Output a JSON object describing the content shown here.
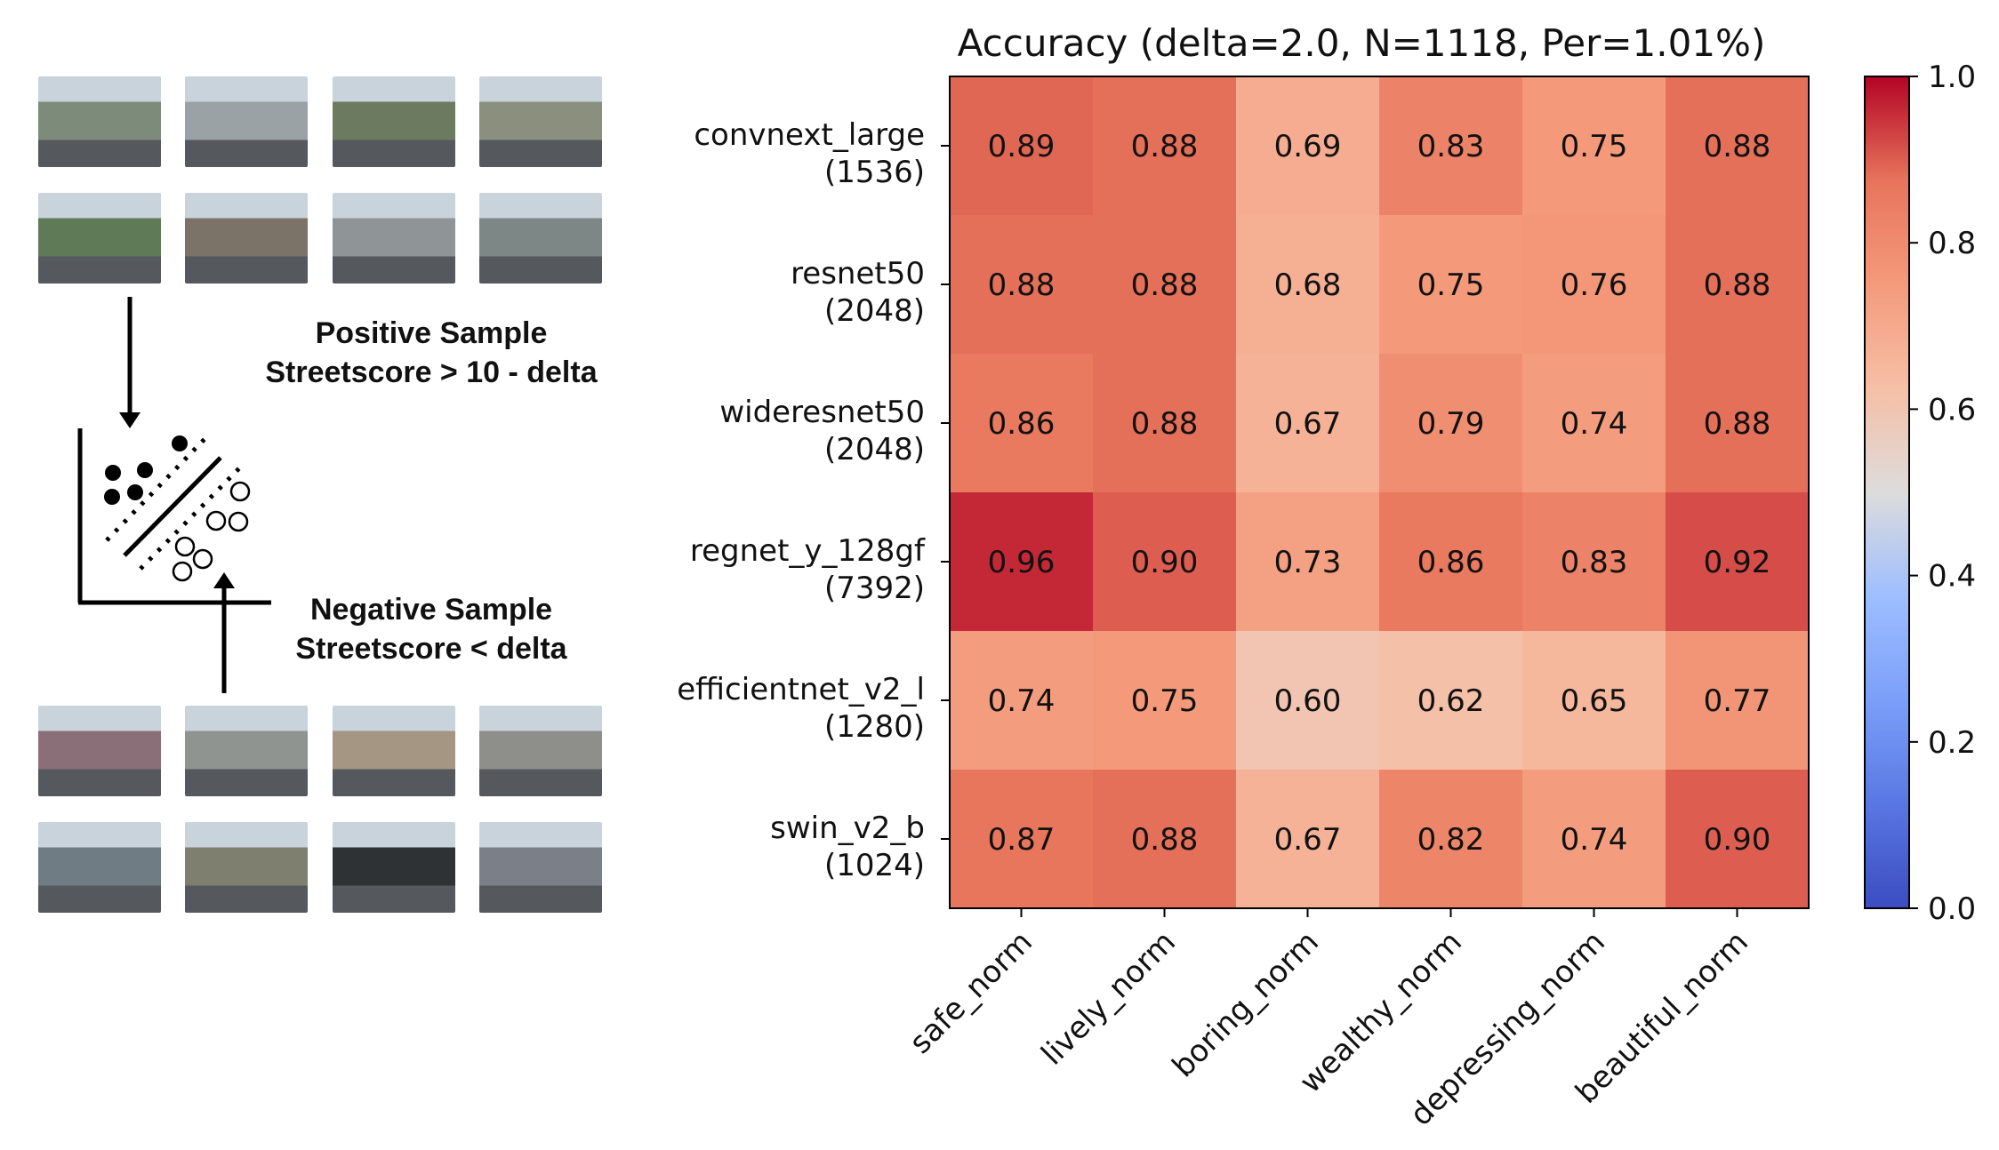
{
  "left_panel": {
    "positive_title": "Positive Sample",
    "positive_rule": "Streetscore > 10 - delta",
    "negative_title": "Negative Sample",
    "negative_rule": "Streetscore < delta",
    "positive_thumb_colors": [
      "#7d8c7a",
      "#9aa2a6",
      "#6c7a5f",
      "#8a8f7e",
      "#5f7a56",
      "#7b7368",
      "#8f9596",
      "#7d8785"
    ],
    "negative_thumb_colors": [
      "#8b6f78",
      "#8f9490",
      "#a49682",
      "#8e8f8a",
      "#6f7c84",
      "#7f7f70",
      "#2f3235",
      "#7b8088"
    ]
  },
  "chart_data": {
    "type": "heatmap",
    "title": "Accuracy (delta=2.0, N=1118, Per=1.01%)",
    "rows": [
      {
        "name": "convnext_large",
        "dim": "(1536)"
      },
      {
        "name": "resnet50",
        "dim": "(2048)"
      },
      {
        "name": "wideresnet50",
        "dim": "(2048)"
      },
      {
        "name": "regnet_y_128gf",
        "dim": "(7392)"
      },
      {
        "name": "efficientnet_v2_l",
        "dim": "(1280)"
      },
      {
        "name": "swin_v2_b",
        "dim": "(1024)"
      }
    ],
    "columns": [
      "safe_norm",
      "lively_norm",
      "boring_norm",
      "wealthy_norm",
      "depressing_norm",
      "beautiful_norm"
    ],
    "values": [
      [
        0.89,
        0.88,
        0.69,
        0.83,
        0.75,
        0.88
      ],
      [
        0.88,
        0.88,
        0.68,
        0.75,
        0.76,
        0.88
      ],
      [
        0.86,
        0.88,
        0.67,
        0.79,
        0.74,
        0.88
      ],
      [
        0.96,
        0.9,
        0.73,
        0.86,
        0.83,
        0.92
      ],
      [
        0.74,
        0.75,
        0.6,
        0.62,
        0.65,
        0.77
      ],
      [
        0.87,
        0.88,
        0.67,
        0.82,
        0.74,
        0.9
      ]
    ],
    "value_labels": [
      [
        "0.89",
        "0.88",
        "0.69",
        "0.83",
        "0.75",
        "0.88"
      ],
      [
        "0.88",
        "0.88",
        "0.68",
        "0.75",
        "0.76",
        "0.88"
      ],
      [
        "0.86",
        "0.88",
        "0.67",
        "0.79",
        "0.74",
        "0.88"
      ],
      [
        "0.96",
        "0.90",
        "0.73",
        "0.86",
        "0.83",
        "0.92"
      ],
      [
        "0.74",
        "0.75",
        "0.60",
        "0.62",
        "0.65",
        "0.77"
      ],
      [
        "0.87",
        "0.88",
        "0.67",
        "0.82",
        "0.74",
        "0.90"
      ]
    ],
    "colorbar": {
      "colormap": "coolwarm",
      "range": [
        0.0,
        1.0
      ],
      "ticks": [
        0.0,
        0.2,
        0.4,
        0.6,
        0.8,
        1.0
      ],
      "tick_labels": [
        "0.0",
        "0.2",
        "0.4",
        "0.6",
        "0.8",
        "1.0"
      ]
    }
  }
}
